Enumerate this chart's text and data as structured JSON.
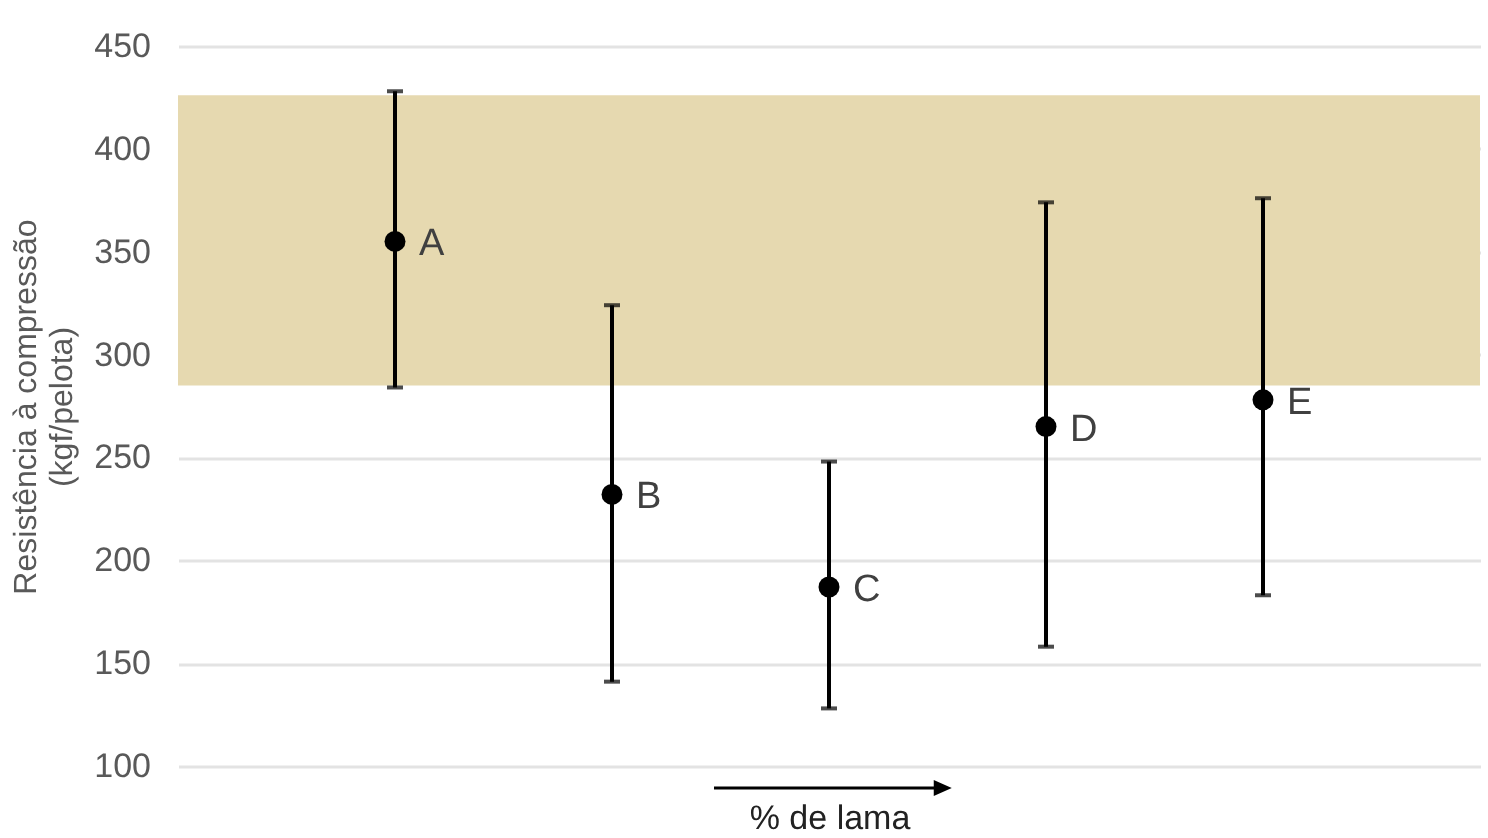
{
  "chart_data": {
    "type": "scatter",
    "xlabel": "% de lama",
    "ylabel": "Resistência à compressão\n(kgf/pelota)",
    "categories": [
      "A",
      "B",
      "C",
      "D",
      "E"
    ],
    "series": [
      {
        "color": "#000000",
        "values": [
          355,
          232,
          187,
          265,
          278
        ],
        "errors": [
          [
            284,
            428
          ],
          [
            141,
            324
          ],
          [
            128,
            248
          ],
          [
            158,
            374
          ],
          [
            183,
            376
          ]
        ]
      }
    ],
    "ylim": [
      100,
      450
    ],
    "yticks": [
      100,
      150,
      200,
      250,
      300,
      350,
      400,
      450
    ],
    "bands": [
      {
        "axis": "y",
        "from": 285,
        "to": 426,
        "color": "#e6d9b0"
      }
    ],
    "grid": "y",
    "marker": "circle",
    "tick_labels": "y"
  }
}
